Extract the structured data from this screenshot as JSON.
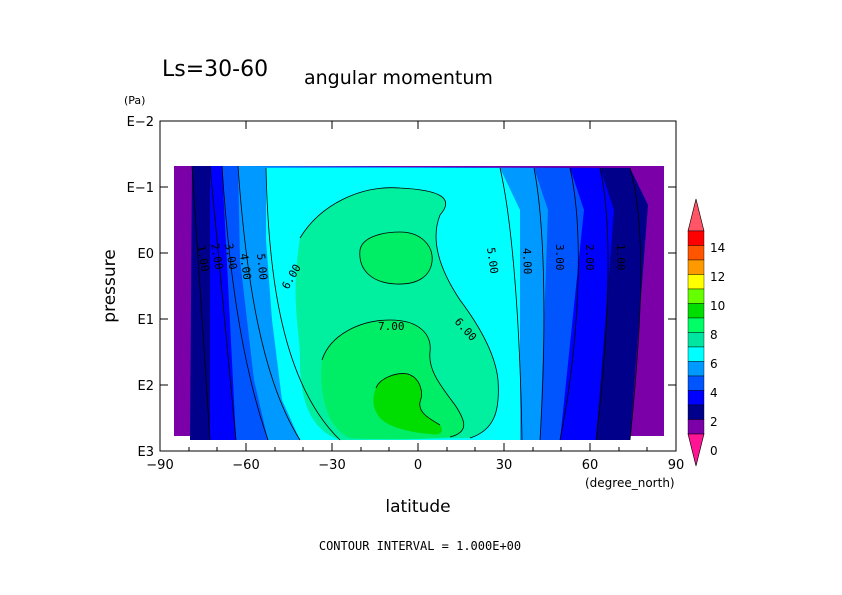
{
  "chart_data": {
    "type": "heatmap",
    "title_left": "Ls=30-60",
    "title_right": "angular momentum",
    "xlabel": "latitude",
    "x_unit": "(degree_north)",
    "ylabel": "pressure",
    "y_unit": "(Pa)",
    "x_ticks": [
      "−90",
      "−60",
      "−30",
      "0",
      "30",
      "60",
      "90"
    ],
    "y_ticks": [
      "E−2",
      "E−1",
      "E0",
      "E1",
      "E2",
      "E3"
    ],
    "xlim": [
      -90,
      90
    ],
    "ylim_log10": [
      3,
      -2
    ],
    "y_scale": "log",
    "contour_interval_text": "CONTOUR INTERVAL = 1.000E+00",
    "contour_labels": [
      "1.00",
      "2.00",
      "3.00",
      "4.00",
      "5.00",
      "6.00",
      "7.00",
      "6.00",
      "5.00",
      "4.00",
      "3.00",
      "2.00",
      "1.00"
    ],
    "colorbar": {
      "tick_labels": [
        "0",
        "2",
        "4",
        "6",
        "8",
        "10",
        "12",
        "14"
      ],
      "colors": [
        "#ff1493",
        "#7b00a8",
        "#00008b",
        "#0000ff",
        "#0055ff",
        "#0099ff",
        "#00ffff",
        "#00e6a0",
        "#00ff66",
        "#00dd00",
        "#66ff00",
        "#ffff00",
        "#ff9900",
        "#ff5500",
        "#ff0000",
        "#ff5566"
      ]
    },
    "levels_colors": {
      "0": "#7b00a8",
      "1": "#00008b",
      "2": "#0000ff",
      "3": "#0055ff",
      "4": "#0099ff",
      "5": "#00ffff",
      "6": "#00ff99",
      "7": "#00ff00"
    }
  }
}
